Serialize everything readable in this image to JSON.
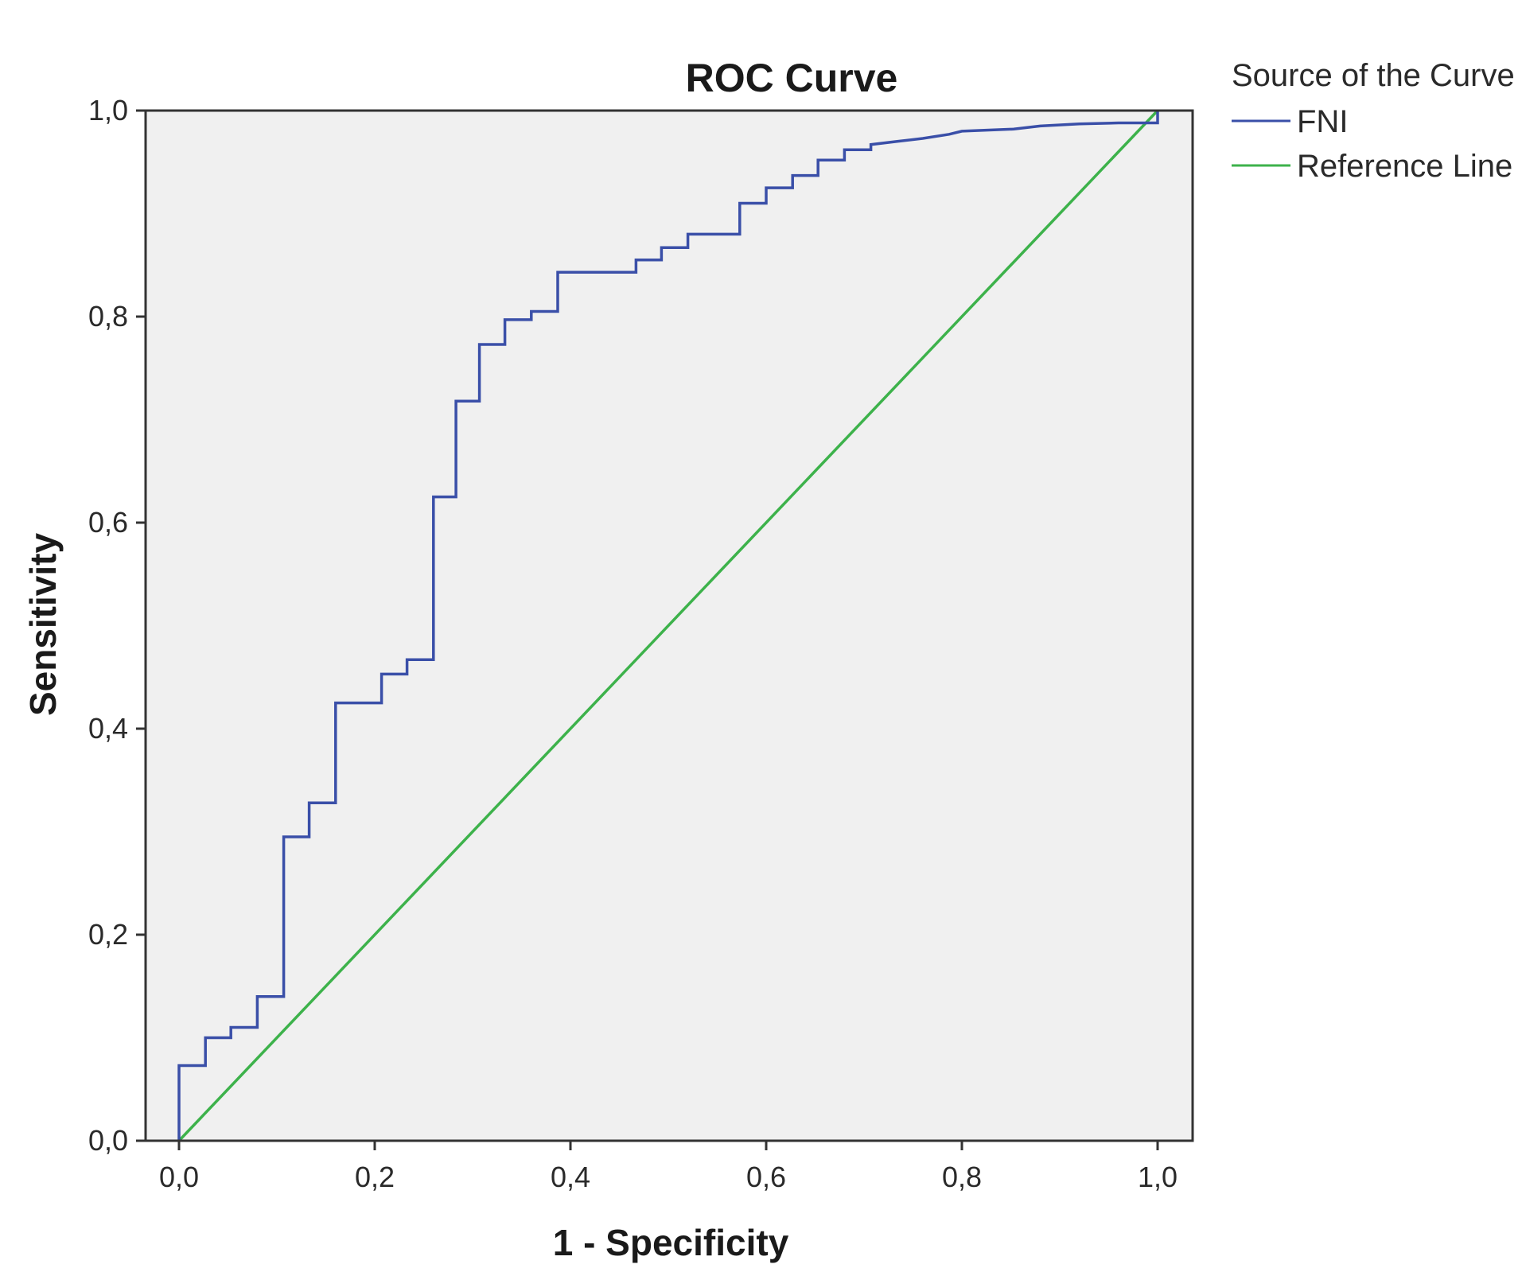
{
  "chart_data": {
    "type": "line",
    "title": "ROC Curve",
    "xlabel": "1 - Specificity",
    "ylabel": "Sensitivity",
    "xlim": [
      0,
      1
    ],
    "ylim": [
      0,
      1
    ],
    "x_ticks": [
      {
        "value": 0.0,
        "label": "0,0"
      },
      {
        "value": 0.2,
        "label": "0,2"
      },
      {
        "value": 0.4,
        "label": "0,4"
      },
      {
        "value": 0.6,
        "label": "0,6"
      },
      {
        "value": 0.8,
        "label": "0,8"
      },
      {
        "value": 1.0,
        "label": "1,0"
      }
    ],
    "y_ticks": [
      {
        "value": 0.0,
        "label": "0,0"
      },
      {
        "value": 0.2,
        "label": "0,2"
      },
      {
        "value": 0.4,
        "label": "0,4"
      },
      {
        "value": 0.6,
        "label": "0,6"
      },
      {
        "value": 0.8,
        "label": "0,8"
      },
      {
        "value": 1.0,
        "label": "1,0"
      }
    ],
    "grid": false,
    "legend": {
      "title": "Source of the Curve",
      "position": "top-right, outside plot"
    },
    "series": [
      {
        "name": "FNI",
        "color": "#3a4fa8",
        "step": true,
        "x": [
          0.0,
          0.0,
          0.027,
          0.027,
          0.053,
          0.053,
          0.08,
          0.08,
          0.107,
          0.107,
          0.133,
          0.133,
          0.16,
          0.16,
          0.207,
          0.207,
          0.233,
          0.233,
          0.26,
          0.26,
          0.283,
          0.283,
          0.307,
          0.307,
          0.333,
          0.333,
          0.36,
          0.36,
          0.387,
          0.387,
          0.413,
          0.44,
          0.467,
          0.467,
          0.493,
          0.493,
          0.52,
          0.52,
          0.547,
          0.573,
          0.573,
          0.6,
          0.6,
          0.627,
          0.627,
          0.653,
          0.653,
          0.68,
          0.68,
          0.707,
          0.707,
          0.733,
          0.76,
          0.787,
          0.8,
          0.853,
          0.88,
          0.92,
          0.96,
          1.0,
          1.0
        ],
        "y": [
          0.0,
          0.073,
          0.073,
          0.1,
          0.1,
          0.11,
          0.11,
          0.14,
          0.14,
          0.295,
          0.295,
          0.328,
          0.328,
          0.425,
          0.425,
          0.453,
          0.453,
          0.467,
          0.467,
          0.625,
          0.625,
          0.718,
          0.718,
          0.773,
          0.773,
          0.797,
          0.797,
          0.805,
          0.805,
          0.843,
          0.843,
          0.843,
          0.843,
          0.855,
          0.855,
          0.867,
          0.867,
          0.88,
          0.88,
          0.88,
          0.91,
          0.91,
          0.925,
          0.925,
          0.937,
          0.937,
          0.952,
          0.952,
          0.962,
          0.962,
          0.967,
          0.97,
          0.973,
          0.977,
          0.98,
          0.982,
          0.985,
          0.987,
          0.988,
          0.988,
          1.0
        ]
      },
      {
        "name": "Reference Line",
        "color": "#3db24b",
        "step": false,
        "x": [
          0,
          1
        ],
        "y": [
          0,
          1
        ]
      }
    ]
  }
}
